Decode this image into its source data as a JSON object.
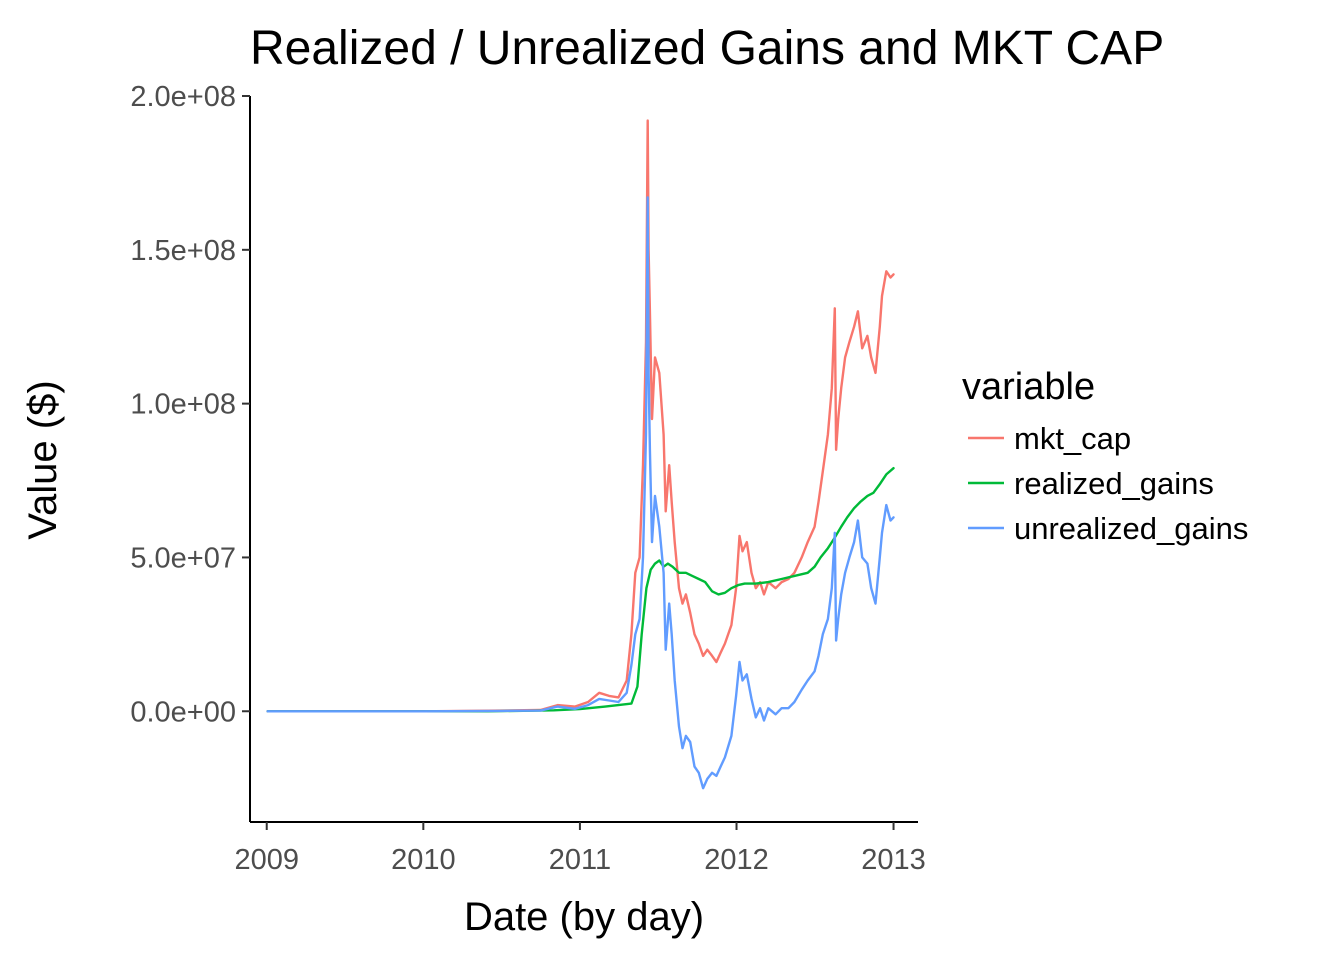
{
  "chart_data": {
    "type": "line",
    "title": "Realized / Unrealized Gains and MKT CAP",
    "xlabel": "Date (by day)",
    "ylabel": "Value ($)",
    "x_ticks": [
      "2009",
      "2010",
      "2011",
      "2012",
      "2013"
    ],
    "y_ticks": [
      "0.0e+00",
      "5.0e+07",
      "1.0e+08",
      "1.5e+08",
      "2.0e+08"
    ],
    "y_tick_values": [
      0,
      50000000,
      100000000,
      150000000,
      200000000
    ],
    "xlim": [
      "2008-11-23",
      "2013-02-27"
    ],
    "ylim": [
      -36000000,
      200000000
    ],
    "grid": false,
    "legend": {
      "title": "variable",
      "position": "right"
    },
    "series": [
      {
        "name": "mkt_cap",
        "color": "#F8766D",
        "points": [
          [
            "2009-01-03",
            0
          ],
          [
            "2010-01-01",
            0
          ],
          [
            "2010-07-01",
            200000
          ],
          [
            "2010-10-01",
            400000
          ],
          [
            "2010-11-10",
            2000000
          ],
          [
            "2010-12-20",
            1500000
          ],
          [
            "2011-01-20",
            3000000
          ],
          [
            "2011-02-15",
            6000000
          ],
          [
            "2011-03-10",
            5000000
          ],
          [
            "2011-04-01",
            4500000
          ],
          [
            "2011-04-20",
            10000000
          ],
          [
            "2011-05-01",
            25000000
          ],
          [
            "2011-05-10",
            45000000
          ],
          [
            "2011-05-20",
            50000000
          ],
          [
            "2011-05-28",
            80000000
          ],
          [
            "2011-06-04",
            120000000
          ],
          [
            "2011-06-08",
            192000000
          ],
          [
            "2011-06-10",
            150000000
          ],
          [
            "2011-06-13",
            130000000
          ],
          [
            "2011-06-18",
            95000000
          ],
          [
            "2011-06-25",
            115000000
          ],
          [
            "2011-07-05",
            110000000
          ],
          [
            "2011-07-15",
            90000000
          ],
          [
            "2011-07-20",
            65000000
          ],
          [
            "2011-07-28",
            80000000
          ],
          [
            "2011-08-03",
            68000000
          ],
          [
            "2011-08-10",
            55000000
          ],
          [
            "2011-08-20",
            40000000
          ],
          [
            "2011-08-28",
            35000000
          ],
          [
            "2011-09-05",
            38000000
          ],
          [
            "2011-09-15",
            32000000
          ],
          [
            "2011-09-25",
            25000000
          ],
          [
            "2011-10-05",
            22000000
          ],
          [
            "2011-10-15",
            18000000
          ],
          [
            "2011-10-25",
            20000000
          ],
          [
            "2011-11-05",
            18000000
          ],
          [
            "2011-11-15",
            16000000
          ],
          [
            "2011-11-25",
            19000000
          ],
          [
            "2011-12-05",
            22000000
          ],
          [
            "2011-12-20",
            28000000
          ],
          [
            "2011-12-31",
            40000000
          ],
          [
            "2012-01-08",
            57000000
          ],
          [
            "2012-01-15",
            52000000
          ],
          [
            "2012-01-25",
            55000000
          ],
          [
            "2012-02-05",
            45000000
          ],
          [
            "2012-02-15",
            40000000
          ],
          [
            "2012-02-25",
            42000000
          ],
          [
            "2012-03-05",
            38000000
          ],
          [
            "2012-03-15",
            42000000
          ],
          [
            "2012-04-01",
            40000000
          ],
          [
            "2012-04-15",
            42000000
          ],
          [
            "2012-05-01",
            43000000
          ],
          [
            "2012-05-15",
            45000000
          ],
          [
            "2012-06-01",
            50000000
          ],
          [
            "2012-06-15",
            55000000
          ],
          [
            "2012-07-01",
            60000000
          ],
          [
            "2012-07-10",
            68000000
          ],
          [
            "2012-07-20",
            78000000
          ],
          [
            "2012-08-01",
            90000000
          ],
          [
            "2012-08-10",
            105000000
          ],
          [
            "2012-08-17",
            131000000
          ],
          [
            "2012-08-20",
            85000000
          ],
          [
            "2012-08-25",
            95000000
          ],
          [
            "2012-09-01",
            105000000
          ],
          [
            "2012-09-10",
            115000000
          ],
          [
            "2012-09-20",
            120000000
          ],
          [
            "2012-10-01",
            125000000
          ],
          [
            "2012-10-10",
            130000000
          ],
          [
            "2012-10-20",
            118000000
          ],
          [
            "2012-11-01",
            122000000
          ],
          [
            "2012-11-10",
            115000000
          ],
          [
            "2012-11-20",
            110000000
          ],
          [
            "2012-11-30",
            125000000
          ],
          [
            "2012-12-05",
            135000000
          ],
          [
            "2012-12-15",
            143000000
          ],
          [
            "2012-12-25",
            141000000
          ],
          [
            "2013-01-01",
            142000000
          ]
        ]
      },
      {
        "name": "realized_gains",
        "color": "#00BA38",
        "points": [
          [
            "2009-01-03",
            0
          ],
          [
            "2010-06-01",
            0
          ],
          [
            "2010-11-01",
            300000
          ],
          [
            "2011-01-01",
            700000
          ],
          [
            "2011-03-01",
            1500000
          ],
          [
            "2011-05-01",
            2500000
          ],
          [
            "2011-05-15",
            8000000
          ],
          [
            "2011-05-25",
            25000000
          ],
          [
            "2011-06-05",
            40000000
          ],
          [
            "2011-06-15",
            46000000
          ],
          [
            "2011-06-25",
            48000000
          ],
          [
            "2011-07-05",
            49000000
          ],
          [
            "2011-07-15",
            47000000
          ],
          [
            "2011-07-25",
            48000000
          ],
          [
            "2011-08-05",
            47000000
          ],
          [
            "2011-08-20",
            45000000
          ],
          [
            "2011-09-05",
            45000000
          ],
          [
            "2011-09-20",
            44000000
          ],
          [
            "2011-10-05",
            43000000
          ],
          [
            "2011-10-20",
            42000000
          ],
          [
            "2011-11-05",
            39000000
          ],
          [
            "2011-11-20",
            38000000
          ],
          [
            "2011-12-05",
            38500000
          ],
          [
            "2011-12-20",
            40000000
          ],
          [
            "2012-01-05",
            41000000
          ],
          [
            "2012-01-20",
            41500000
          ],
          [
            "2012-02-15",
            41500000
          ],
          [
            "2012-03-15",
            42000000
          ],
          [
            "2012-04-15",
            43000000
          ],
          [
            "2012-05-15",
            44000000
          ],
          [
            "2012-06-15",
            45000000
          ],
          [
            "2012-07-01",
            47000000
          ],
          [
            "2012-07-15",
            50000000
          ],
          [
            "2012-08-01",
            53000000
          ],
          [
            "2012-08-15",
            56000000
          ],
          [
            "2012-09-01",
            60000000
          ],
          [
            "2012-09-15",
            63000000
          ],
          [
            "2012-10-01",
            66000000
          ],
          [
            "2012-10-15",
            68000000
          ],
          [
            "2012-11-01",
            70000000
          ],
          [
            "2012-11-15",
            71000000
          ],
          [
            "2012-12-01",
            74000000
          ],
          [
            "2012-12-15",
            77000000
          ],
          [
            "2013-01-01",
            79000000
          ]
        ]
      },
      {
        "name": "unrealized_gains",
        "color": "#619CFF",
        "points": [
          [
            "2009-01-03",
            0
          ],
          [
            "2010-01-01",
            0
          ],
          [
            "2010-07-01",
            100000
          ],
          [
            "2010-10-01",
            200000
          ],
          [
            "2010-11-10",
            1500000
          ],
          [
            "2010-12-20",
            800000
          ],
          [
            "2011-01-20",
            2000000
          ],
          [
            "2011-02-15",
            4000000
          ],
          [
            "2011-03-10",
            3500000
          ],
          [
            "2011-04-01",
            3000000
          ],
          [
            "2011-04-20",
            6000000
          ],
          [
            "2011-05-01",
            15000000
          ],
          [
            "2011-05-10",
            25000000
          ],
          [
            "2011-05-20",
            30000000
          ],
          [
            "2011-05-28",
            50000000
          ],
          [
            "2011-06-04",
            90000000
          ],
          [
            "2011-06-08",
            167000000
          ],
          [
            "2011-06-10",
            110000000
          ],
          [
            "2011-06-13",
            85000000
          ],
          [
            "2011-06-18",
            55000000
          ],
          [
            "2011-06-25",
            70000000
          ],
          [
            "2011-07-05",
            60000000
          ],
          [
            "2011-07-15",
            45000000
          ],
          [
            "2011-07-20",
            20000000
          ],
          [
            "2011-07-28",
            35000000
          ],
          [
            "2011-08-03",
            25000000
          ],
          [
            "2011-08-10",
            10000000
          ],
          [
            "2011-08-20",
            -5000000
          ],
          [
            "2011-08-28",
            -12000000
          ],
          [
            "2011-09-05",
            -8000000
          ],
          [
            "2011-09-15",
            -10000000
          ],
          [
            "2011-09-25",
            -18000000
          ],
          [
            "2011-10-05",
            -20000000
          ],
          [
            "2011-10-15",
            -25000000
          ],
          [
            "2011-10-25",
            -22000000
          ],
          [
            "2011-11-05",
            -20000000
          ],
          [
            "2011-11-15",
            -21000000
          ],
          [
            "2011-11-25",
            -18000000
          ],
          [
            "2011-12-05",
            -15000000
          ],
          [
            "2011-12-20",
            -8000000
          ],
          [
            "2011-12-31",
            5000000
          ],
          [
            "2012-01-08",
            16000000
          ],
          [
            "2012-01-15",
            10000000
          ],
          [
            "2012-01-25",
            12000000
          ],
          [
            "2012-02-05",
            4000000
          ],
          [
            "2012-02-15",
            -2000000
          ],
          [
            "2012-02-25",
            1000000
          ],
          [
            "2012-03-05",
            -3000000
          ],
          [
            "2012-03-15",
            1000000
          ],
          [
            "2012-04-01",
            -1000000
          ],
          [
            "2012-04-15",
            1000000
          ],
          [
            "2012-05-01",
            1000000
          ],
          [
            "2012-05-15",
            3000000
          ],
          [
            "2012-06-01",
            7000000
          ],
          [
            "2012-06-15",
            10000000
          ],
          [
            "2012-07-01",
            13000000
          ],
          [
            "2012-07-10",
            18000000
          ],
          [
            "2012-07-20",
            25000000
          ],
          [
            "2012-08-01",
            30000000
          ],
          [
            "2012-08-10",
            40000000
          ],
          [
            "2012-08-17",
            58000000
          ],
          [
            "2012-08-20",
            23000000
          ],
          [
            "2012-08-25",
            30000000
          ],
          [
            "2012-09-01",
            38000000
          ],
          [
            "2012-09-10",
            45000000
          ],
          [
            "2012-09-20",
            50000000
          ],
          [
            "2012-10-01",
            55000000
          ],
          [
            "2012-10-10",
            62000000
          ],
          [
            "2012-10-20",
            50000000
          ],
          [
            "2012-11-01",
            48000000
          ],
          [
            "2012-11-10",
            40000000
          ],
          [
            "2012-11-20",
            35000000
          ],
          [
            "2012-11-30",
            50000000
          ],
          [
            "2012-12-05",
            58000000
          ],
          [
            "2012-12-15",
            67000000
          ],
          [
            "2012-12-25",
            62000000
          ],
          [
            "2013-01-01",
            63000000
          ]
        ]
      }
    ]
  }
}
